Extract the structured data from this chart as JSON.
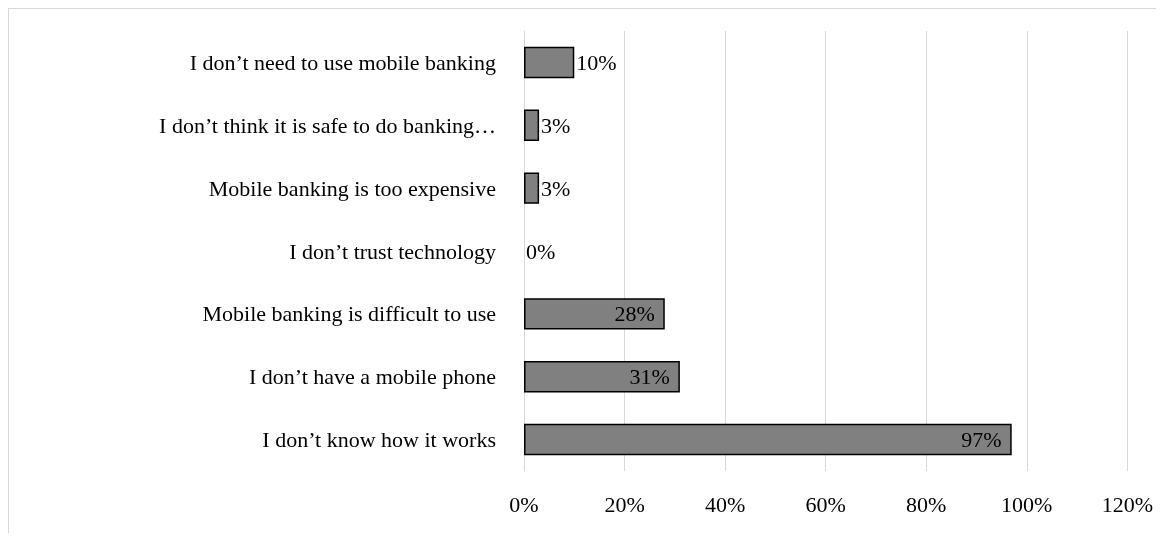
{
  "chart_data": {
    "type": "bar",
    "orientation": "horizontal",
    "categories": [
      "I don’t need to use mobile banking",
      "I don’t think it is safe to do banking…",
      "Mobile banking is too expensive",
      "I don’t trust technology",
      "Mobile banking is difficult to use",
      "I don’t have a mobile phone",
      "I don’t know how it works"
    ],
    "values": [
      10,
      3,
      3,
      0,
      28,
      31,
      97
    ],
    "value_labels": [
      "10%",
      "3%",
      "3%",
      "0%",
      "28%",
      "31%",
      "97%"
    ],
    "color": "#808080",
    "xlim": [
      0,
      120
    ],
    "xticks": [
      {
        "value": 0,
        "label": "0%"
      },
      {
        "value": 20,
        "label": "20%"
      },
      {
        "value": 40,
        "label": "40%"
      },
      {
        "value": 60,
        "label": "60%"
      },
      {
        "value": 80,
        "label": "80%"
      },
      {
        "value": 100,
        "label": "100%"
      },
      {
        "value": 120,
        "label": "120%"
      }
    ],
    "grid": "x"
  }
}
